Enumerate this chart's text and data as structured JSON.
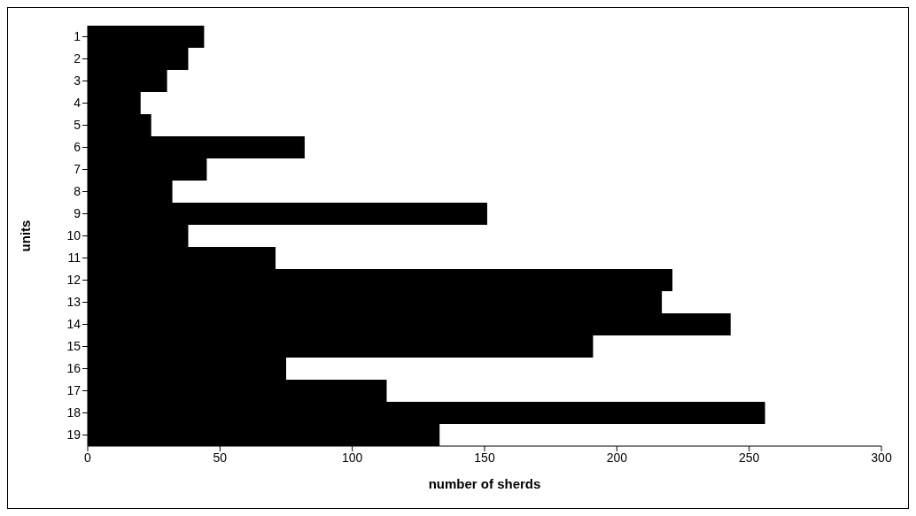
{
  "chart_data": {
    "type": "bar",
    "orientation": "horizontal",
    "xlabel": "number of sherds",
    "ylabel": "units",
    "categories": [
      "1",
      "2",
      "3",
      "4",
      "5",
      "6",
      "7",
      "8",
      "9",
      "10",
      "11",
      "12",
      "13",
      "14",
      "15",
      "16",
      "17",
      "18",
      "19"
    ],
    "values": [
      44,
      38,
      30,
      20,
      24,
      82,
      45,
      32,
      151,
      38,
      71,
      221,
      217,
      243,
      191,
      75,
      113,
      256,
      133
    ],
    "color": "#000000",
    "xlim": [
      0,
      300
    ],
    "xticks": [
      0,
      50,
      100,
      150,
      200,
      250,
      300
    ],
    "grid": false,
    "legend": false
  }
}
